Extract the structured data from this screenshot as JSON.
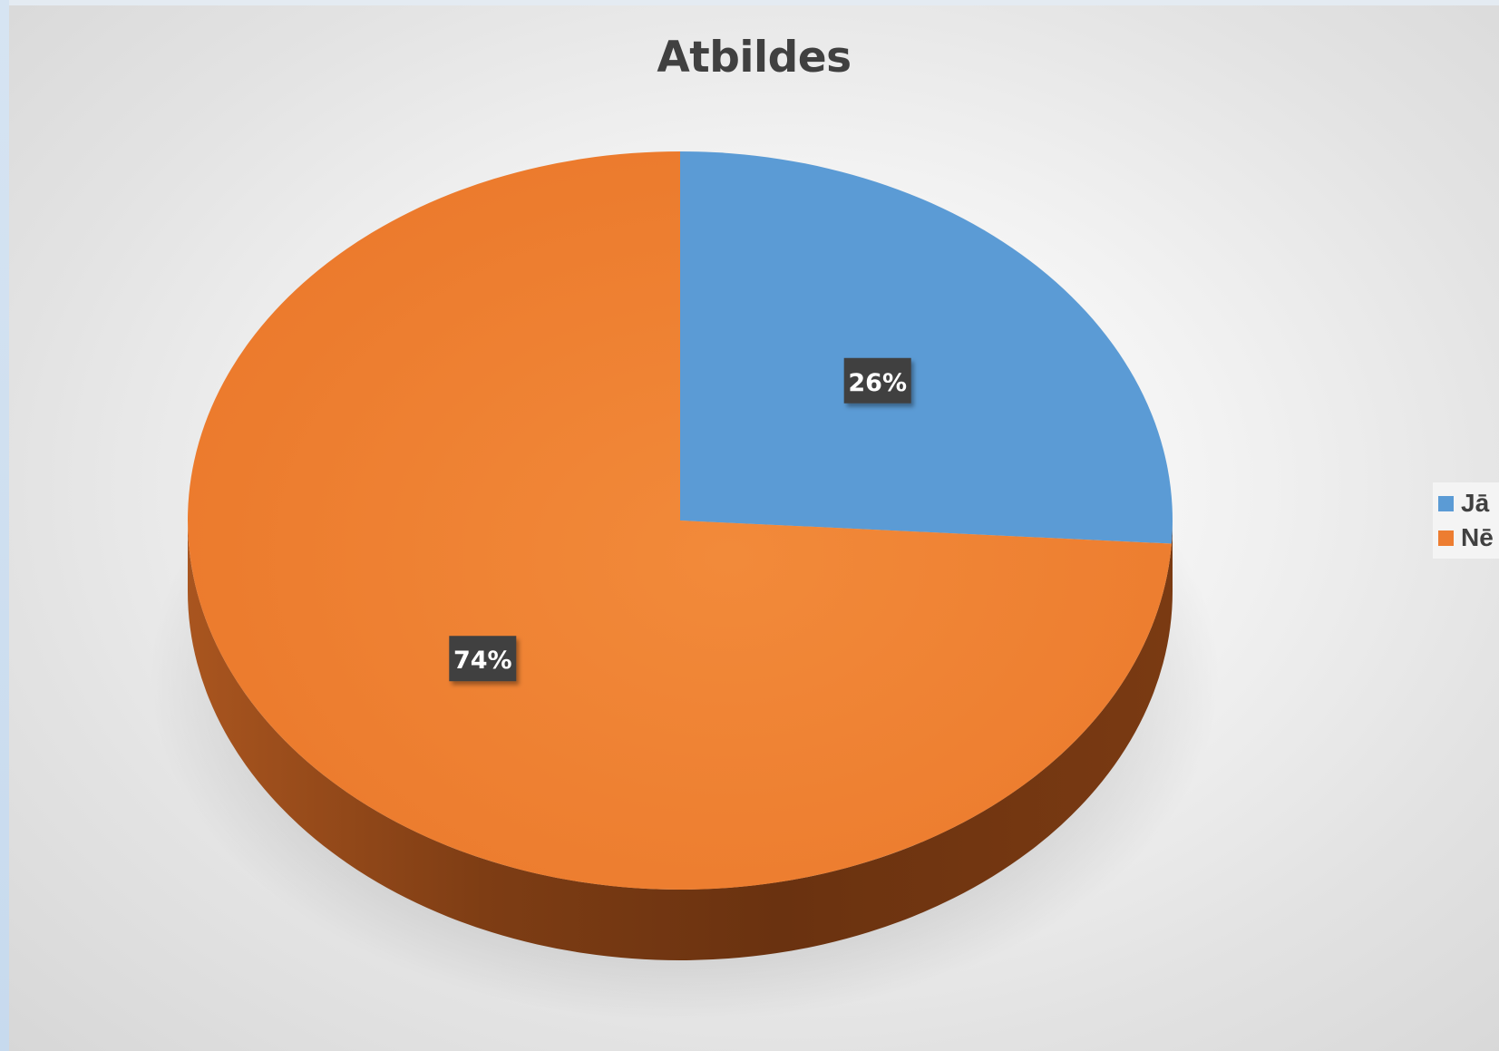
{
  "chart_data": {
    "type": "pie",
    "title": "Atbildes",
    "categories": [
      "Jā",
      "Nē"
    ],
    "values": [
      26,
      74
    ],
    "labels": [
      "26%",
      "74%"
    ],
    "colors": [
      "#5b9bd5",
      "#ed7d31"
    ],
    "legend": "right",
    "style": "3d"
  }
}
